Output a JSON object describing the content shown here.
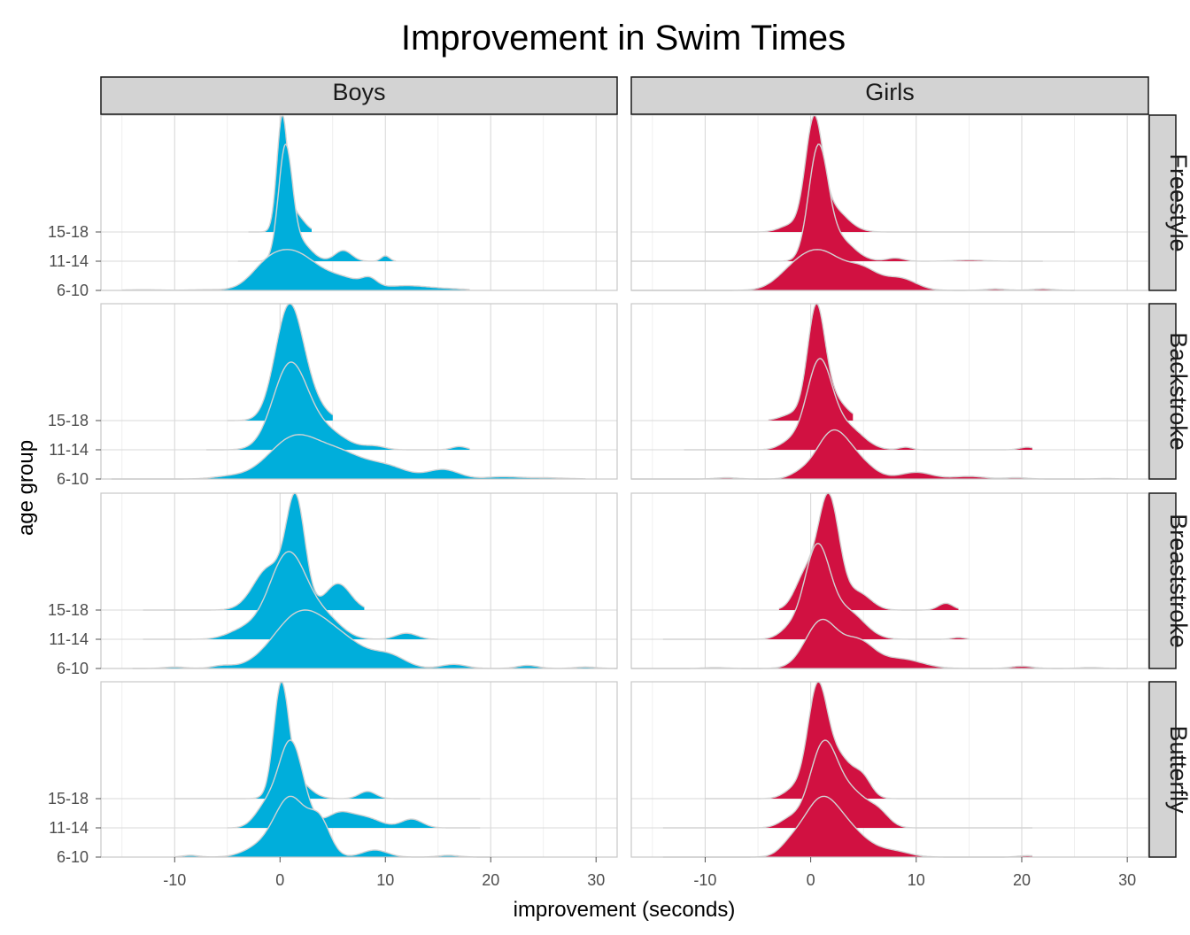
{
  "chart_data": {
    "type": "ridgeline",
    "title": "Improvement in Swim Times",
    "xlabel": "improvement (seconds)",
    "ylabel": "age group",
    "x_ticks": [
      -10,
      0,
      10,
      20,
      30
    ],
    "xlim": [
      -17,
      32
    ],
    "age_groups": [
      "6-10",
      "11-14",
      "15-18"
    ],
    "columns": [
      {
        "name": "Boys",
        "color": "#00aedb"
      },
      {
        "name": "Girls",
        "color": "#d11141"
      }
    ],
    "rows": [
      "Freestyle",
      "Backstroke",
      "Breaststroke",
      "Butterfly"
    ],
    "panels": [
      {
        "gender": "Boys",
        "stroke": "Freestyle",
        "ridges": [
          {
            "group": "6-10",
            "range": [
              -15,
              18
            ],
            "peak": 0.35,
            "comps": [
              [
                1.2,
                2.2,
                1
              ],
              [
                -1.5,
                1.5,
                0.35
              ],
              [
                6,
                2,
                0.3
              ],
              [
                8.5,
                0.7,
                0.2
              ],
              [
                12,
                2,
                0.12
              ],
              [
                16,
                2,
                0.04
              ],
              [
                -7,
                1.5,
                0.02
              ],
              [
                -13,
                1.5,
                0.02
              ]
            ]
          },
          {
            "group": "11-14",
            "range": [
              -4,
              11
            ],
            "peak": 1.0,
            "comps": [
              [
                0.5,
                0.65,
                1
              ],
              [
                1.8,
                1.1,
                0.18
              ],
              [
                6,
                0.8,
                0.1
              ],
              [
                10,
                0.4,
                0.05
              ]
            ]
          },
          {
            "group": "15-18",
            "range": [
              -3,
              3
            ],
            "peak": 1.0,
            "comps": [
              [
                0.2,
                0.5,
                1
              ],
              [
                1.3,
                0.9,
                0.18
              ]
            ]
          }
        ]
      },
      {
        "gender": "Girls",
        "stroke": "Freestyle",
        "ridges": [
          {
            "group": "6-10",
            "range": [
              -17,
              25
            ],
            "peak": 0.35,
            "comps": [
              [
                0.8,
                2.2,
                1
              ],
              [
                5,
                1.5,
                0.45
              ],
              [
                8.5,
                1.5,
                0.3
              ],
              [
                -2,
                1.5,
                0.2
              ],
              [
                17.5,
                1,
                0.04
              ],
              [
                22,
                1,
                0.04
              ]
            ]
          },
          {
            "group": "11-14",
            "range": [
              -17,
              22
            ],
            "peak": 1.0,
            "comps": [
              [
                0.7,
                0.9,
                1
              ],
              [
                2.5,
                1.5,
                0.22
              ],
              [
                8,
                0.8,
                0.03
              ],
              [
                15,
                1.5,
                0.01
              ]
            ]
          },
          {
            "group": "15-18",
            "range": [
              -10,
              25
            ],
            "peak": 1.0,
            "comps": [
              [
                0.3,
                0.8,
                1
              ],
              [
                1.8,
                1.5,
                0.25
              ],
              [
                -2,
                1,
                0.06
              ]
            ]
          }
        ]
      },
      {
        "gender": "Boys",
        "stroke": "Backstroke",
        "ridges": [
          {
            "group": "6-10",
            "range": [
              -16,
              29
            ],
            "peak": 0.38,
            "comps": [
              [
                1.5,
                2.5,
                1
              ],
              [
                6,
                2,
                0.45
              ],
              [
                10,
                2,
                0.3
              ],
              [
                15.5,
                1.5,
                0.22
              ],
              [
                21,
                1.5,
                0.05
              ],
              [
                25,
                2,
                0.03
              ],
              [
                -5,
                1.5,
                0.05
              ]
            ]
          },
          {
            "group": "11-14",
            "range": [
              -7,
              18
            ],
            "peak": 0.75,
            "comps": [
              [
                0.9,
                1.6,
                1
              ],
              [
                4,
                2,
                0.25
              ],
              [
                9,
                1,
                0.04
              ],
              [
                17,
                0.7,
                0.04
              ]
            ]
          },
          {
            "group": "15-18",
            "range": [
              -5,
              5
            ],
            "peak": 1.0,
            "comps": [
              [
                0.8,
                1.3,
                1
              ],
              [
                2.5,
                1.5,
                0.2
              ]
            ]
          }
        ]
      },
      {
        "gender": "Girls",
        "stroke": "Backstroke",
        "ridges": [
          {
            "group": "6-10",
            "range": [
              -17,
              30
            ],
            "peak": 0.42,
            "comps": [
              [
                2,
                1.5,
                1
              ],
              [
                4.5,
                1.5,
                0.35
              ],
              [
                -1,
                1,
                0.1
              ],
              [
                10,
                1.5,
                0.15
              ],
              [
                15,
                1.5,
                0.06
              ],
              [
                19.5,
                1,
                0.03
              ],
              [
                -8,
                1,
                0.03
              ],
              [
                28,
                1,
                0.01
              ]
            ]
          },
          {
            "group": "11-14",
            "range": [
              -12,
              21
            ],
            "peak": 0.78,
            "comps": [
              [
                0.8,
                1.2,
                1
              ],
              [
                3.5,
                1.5,
                0.25
              ],
              [
                -2,
                1,
                0.08
              ],
              [
                9,
                0.6,
                0.03
              ],
              [
                20.5,
                0.7,
                0.03
              ]
            ]
          },
          {
            "group": "15-18",
            "range": [
              -4,
              4
            ],
            "peak": 1.0,
            "comps": [
              [
                0.5,
                0.8,
                1
              ],
              [
                1.5,
                1.5,
                0.3
              ],
              [
                -2,
                1,
                0.05
              ]
            ]
          }
        ]
      },
      {
        "gender": "Boys",
        "stroke": "Breaststroke",
        "ridges": [
          {
            "group": "6-10",
            "range": [
              -14,
              32
            ],
            "peak": 0.5,
            "comps": [
              [
                1.8,
                2.5,
                1
              ],
              [
                6,
                2.5,
                0.45
              ],
              [
                10.5,
                1.5,
                0.2
              ],
              [
                16.5,
                1.2,
                0.08
              ],
              [
                23.5,
                1,
                0.06
              ],
              [
                29,
                1,
                0.03
              ],
              [
                -5.5,
                1,
                0.05
              ],
              [
                -10,
                1,
                0.03
              ]
            ]
          },
          {
            "group": "11-14",
            "range": [
              -13,
              15
            ],
            "peak": 0.75,
            "comps": [
              [
                0.8,
                1.8,
                1
              ],
              [
                4.5,
                1.5,
                0.2
              ],
              [
                -3.5,
                1.5,
                0.1
              ],
              [
                12,
                1,
                0.07
              ]
            ]
          },
          {
            "group": "15-18",
            "range": [
              -13,
              8
            ],
            "peak": 1.0,
            "comps": [
              [
                1.5,
                0.9,
                1
              ],
              [
                -1,
                1.5,
                0.4
              ],
              [
                5.5,
                1.2,
                0.25
              ]
            ]
          }
        ]
      },
      {
        "gender": "Girls",
        "stroke": "Breaststroke",
        "ridges": [
          {
            "group": "6-10",
            "range": [
              -17,
              30
            ],
            "peak": 0.42,
            "comps": [
              [
                1,
                1.5,
                1
              ],
              [
                4.5,
                1.5,
                0.55
              ],
              [
                8.5,
                2,
                0.2
              ],
              [
                20,
                1,
                0.05
              ],
              [
                26.5,
                1,
                0.02
              ],
              [
                -9,
                1,
                0.02
              ]
            ]
          },
          {
            "group": "11-14",
            "range": [
              -14,
              15
            ],
            "peak": 0.82,
            "comps": [
              [
                0.6,
                1.2,
                1
              ],
              [
                3.5,
                1.6,
                0.3
              ],
              [
                -2,
                1,
                0.1
              ],
              [
                14,
                0.6,
                0.02
              ]
            ]
          },
          {
            "group": "15-18",
            "range": [
              -3,
              14
            ],
            "peak": 1.0,
            "comps": [
              [
                1.7,
                1,
                1
              ],
              [
                -0.5,
                1,
                0.3
              ],
              [
                4.5,
                1.2,
                0.15
              ],
              [
                12.8,
                0.7,
                0.06
              ]
            ]
          }
        ]
      },
      {
        "gender": "Boys",
        "stroke": "Butterfly",
        "ridges": [
          {
            "group": "6-10",
            "range": [
              -10,
              20
            ],
            "peak": 0.52,
            "comps": [
              [
                1,
                1.5,
                1
              ],
              [
                3.8,
                1,
                0.55
              ],
              [
                -2,
                1.5,
                0.15
              ],
              [
                9,
                1.2,
                0.12
              ],
              [
                16,
                1,
                0.03
              ],
              [
                -8.5,
                0.8,
                0.03
              ]
            ]
          },
          {
            "group": "11-14",
            "range": [
              -5,
              19
            ],
            "peak": 0.75,
            "comps": [
              [
                1,
                1.2,
                1
              ],
              [
                -1.5,
                1,
                0.2
              ],
              [
                5.5,
                1.2,
                0.15
              ],
              [
                8,
                1.5,
                0.12
              ],
              [
                12.5,
                1,
                0.1
              ]
            ]
          },
          {
            "group": "15-18",
            "range": [
              -10,
              19
            ],
            "peak": 1.0,
            "comps": [
              [
                0.1,
                0.7,
                1
              ],
              [
                1.3,
                1.3,
                0.2
              ],
              [
                8.3,
                0.8,
                0.07
              ]
            ]
          }
        ]
      },
      {
        "gender": "Girls",
        "stroke": "Butterfly",
        "ridges": [
          {
            "group": "6-10",
            "range": [
              -14,
              21
            ],
            "peak": 0.52,
            "comps": [
              [
                0.8,
                1.7,
                1
              ],
              [
                3.5,
                2,
                0.5
              ],
              [
                -2,
                1,
                0.15
              ],
              [
                8,
                1.5,
                0.1
              ],
              [
                20.5,
                0.8,
                0.03
              ]
            ]
          },
          {
            "group": "11-14",
            "range": [
              -14,
              21
            ],
            "peak": 0.75,
            "comps": [
              [
                1.2,
                1.3,
                1
              ],
              [
                4,
                1.5,
                0.4
              ],
              [
                -2,
                1,
                0.1
              ],
              [
                6.5,
                1,
                0.15
              ]
            ]
          },
          {
            "group": "15-18",
            "range": [
              -10,
              20
            ],
            "peak": 1.0,
            "comps": [
              [
                0.6,
                0.9,
                1
              ],
              [
                2.5,
                1.5,
                0.45
              ],
              [
                5,
                0.8,
                0.15
              ],
              [
                -1.5,
                1,
                0.1
              ]
            ]
          }
        ]
      }
    ]
  }
}
